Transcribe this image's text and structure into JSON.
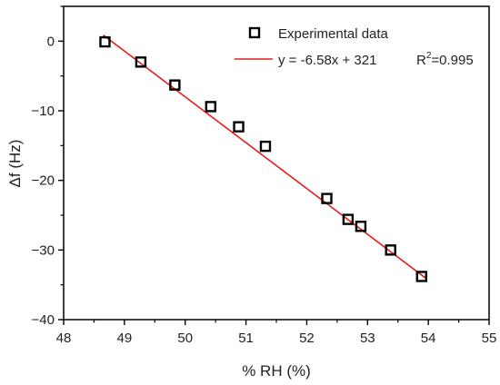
{
  "chart_data": {
    "type": "scatter",
    "xlabel": "% RH (%)",
    "ylabel": "Δf (Hz)",
    "xlim": [
      48,
      55
    ],
    "ylim": [
      -40,
      5
    ],
    "x_ticks": [
      48,
      49,
      50,
      51,
      52,
      53,
      54,
      55
    ],
    "y_ticks": [
      0,
      -10,
      -20,
      -30,
      -40
    ],
    "grid": false,
    "legend_position": "top-right",
    "series": [
      {
        "name": "Experimental data",
        "marker": "open-square",
        "color": "#000000",
        "x": [
          48.68,
          49.27,
          49.83,
          50.42,
          50.88,
          51.32,
          52.33,
          52.68,
          52.89,
          53.38,
          53.89
        ],
        "y": [
          -0.1,
          -3.0,
          -6.3,
          -9.4,
          -12.3,
          -15.1,
          -22.6,
          -25.6,
          -26.6,
          -30.0,
          -33.8
        ]
      },
      {
        "name": "y = -6.58x + 321",
        "type": "line",
        "color": "#e02020",
        "slope": -6.58,
        "intercept": 321,
        "x": [
          48.65,
          53.95
        ]
      }
    ],
    "annotation": {
      "r_label": "R",
      "r_exp": "2",
      "r_value": "=0.995"
    }
  }
}
